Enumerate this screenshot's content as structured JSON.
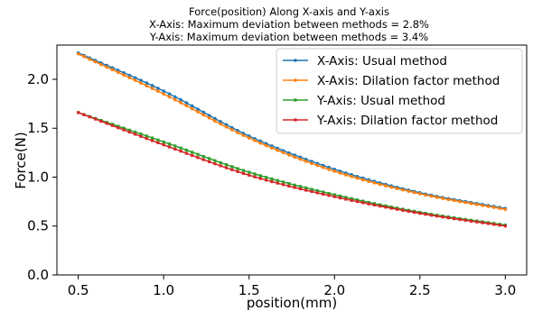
{
  "chart_data": {
    "type": "line",
    "title": "Force(position) Along X-axis and Y-axis",
    "subtitle": [
      "X-Axis: Maximum deviation between methods = 2.8%",
      "Y-Axis: Maximum deviation between methods = 3.4%"
    ],
    "xlabel": "position(mm)",
    "ylabel": "Force(N)",
    "xlim": [
      0.375,
      3.125
    ],
    "ylim": [
      0.0,
      2.35
    ],
    "xticks": [
      0.5,
      1.0,
      1.5,
      2.0,
      2.5,
      3.0
    ],
    "xtick_labels": [
      "0.5",
      "1.0",
      "1.5",
      "2.0",
      "2.5",
      "3.0"
    ],
    "yticks": [
      0.0,
      0.5,
      1.0,
      1.5,
      2.0
    ],
    "ytick_labels": [
      "0.0",
      "0.5",
      "1.0",
      "1.5",
      "2.0"
    ],
    "grid": false,
    "legend_position": "top-right",
    "x_range": [
      0.5,
      3.0
    ],
    "num_points": 76,
    "series": [
      {
        "name": "X-Axis: Usual method",
        "color": "#1f77b4",
        "marker": "circle",
        "x": [
          0.5,
          1.0,
          1.5,
          2.0,
          2.5,
          3.0
        ],
        "values": [
          2.27,
          1.88,
          1.42,
          1.08,
          0.84,
          0.68
        ]
      },
      {
        "name": "X-Axis: Dilation factor method",
        "color": "#ff7f0e",
        "marker": "circle",
        "x": [
          0.5,
          1.0,
          1.5,
          2.0,
          2.5,
          3.0
        ],
        "values": [
          2.26,
          1.85,
          1.4,
          1.06,
          0.83,
          0.67
        ]
      },
      {
        "name": "Y-Axis: Usual method",
        "color": "#2ca02c",
        "marker": "square",
        "x": [
          0.5,
          1.0,
          1.5,
          2.0,
          2.5,
          3.0
        ],
        "values": [
          1.66,
          1.36,
          1.05,
          0.82,
          0.64,
          0.51
        ]
      },
      {
        "name": "Y-Axis: Dilation factor method",
        "color": "#d62728",
        "marker": "square",
        "x": [
          0.5,
          1.0,
          1.5,
          2.0,
          2.5,
          3.0
        ],
        "values": [
          1.66,
          1.33,
          1.02,
          0.8,
          0.63,
          0.5
        ]
      }
    ]
  }
}
